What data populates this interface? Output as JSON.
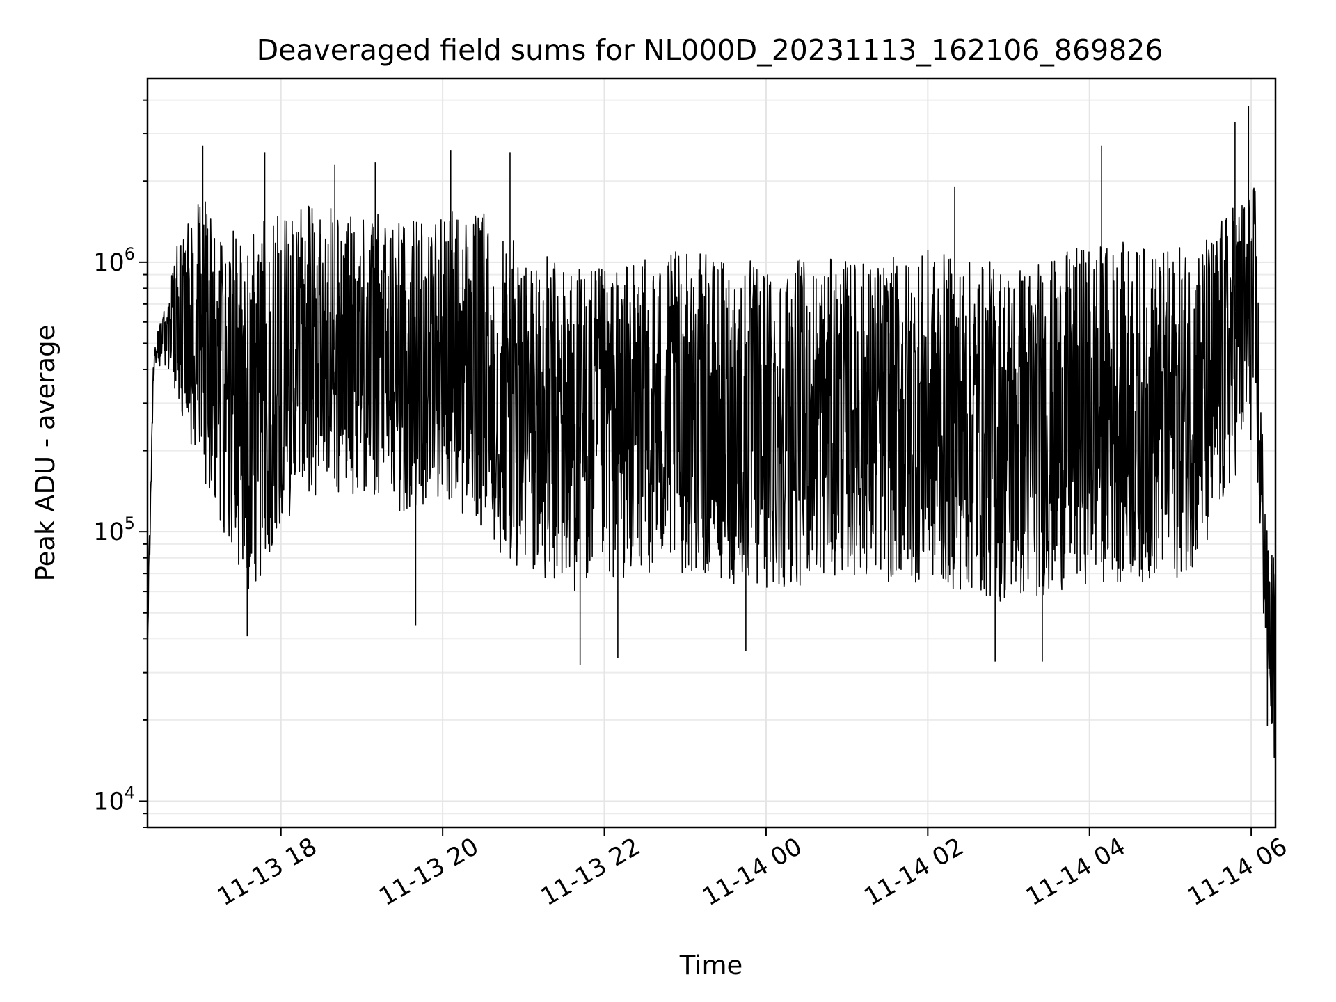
{
  "chart_data": {
    "type": "line",
    "title": "Deaveraged field sums for NL000D_20231113_162106_869826",
    "xlabel": "Time",
    "ylabel": "Peak ADU - average",
    "yscale": "log",
    "ylim": [
      8000,
      4800000
    ],
    "xlim": [
      "2023-11-13 16:21",
      "2023-11-14 06:18"
    ],
    "grid": true,
    "legend": "none",
    "line_color": "#000000",
    "x_ticks": [
      {
        "label": "11-13 18",
        "time": "2023-11-13 18:00"
      },
      {
        "label": "11-13 20",
        "time": "2023-11-13 20:00"
      },
      {
        "label": "11-13 22",
        "time": "2023-11-13 22:00"
      },
      {
        "label": "11-14 00",
        "time": "2023-11-14 00:00"
      },
      {
        "label": "11-14 02",
        "time": "2023-11-14 02:00"
      },
      {
        "label": "11-14 04",
        "time": "2023-11-14 04:00"
      },
      {
        "label": "11-14 06",
        "time": "2023-11-14 06:00"
      }
    ],
    "y_ticks": [
      {
        "base": "10",
        "exp": "4",
        "value": 10000
      },
      {
        "base": "10",
        "exp": "5",
        "value": 100000
      },
      {
        "base": "10",
        "exp": "6",
        "value": 1000000
      }
    ],
    "series": [
      {
        "envelope": [
          {
            "t": "2023-11-13 16:21",
            "low": 35000,
            "high": 50000
          },
          {
            "t": "2023-11-13 16:26",
            "low": 400000,
            "high": 600000
          },
          {
            "t": "2023-11-13 16:35",
            "low": 400000,
            "high": 700000
          },
          {
            "t": "2023-11-13 16:45",
            "low": 250000,
            "high": 1500000
          },
          {
            "t": "2023-11-13 17:00",
            "low": 150000,
            "high": 2000000
          },
          {
            "t": "2023-11-13 17:20",
            "low": 80000,
            "high": 1600000
          },
          {
            "t": "2023-11-13 17:40",
            "low": 45000,
            "high": 1800000
          },
          {
            "t": "2023-11-13 18:00",
            "low": 90000,
            "high": 1800000
          },
          {
            "t": "2023-11-13 18:30",
            "low": 120000,
            "high": 1900000
          },
          {
            "t": "2023-11-13 19:00",
            "low": 120000,
            "high": 1800000
          },
          {
            "t": "2023-11-13 19:30",
            "low": 100000,
            "high": 1700000
          },
          {
            "t": "2023-11-13 20:00",
            "low": 120000,
            "high": 1800000
          },
          {
            "t": "2023-11-13 20:30",
            "low": 80000,
            "high": 1800000
          },
          {
            "t": "2023-11-13 21:00",
            "low": 55000,
            "high": 1300000
          },
          {
            "t": "2023-11-13 21:30",
            "low": 50000,
            "high": 1200000
          },
          {
            "t": "2023-11-13 22:00",
            "low": 55000,
            "high": 1100000
          },
          {
            "t": "2023-11-13 22:30",
            "low": 60000,
            "high": 1200000
          },
          {
            "t": "2023-11-13 23:00",
            "low": 60000,
            "high": 1300000
          },
          {
            "t": "2023-11-13 23:30",
            "low": 55000,
            "high": 1200000
          },
          {
            "t": "2023-11-14 00:00",
            "low": 50000,
            "high": 1200000
          },
          {
            "t": "2023-11-14 00:30",
            "low": 55000,
            "high": 1200000
          },
          {
            "t": "2023-11-14 01:00",
            "low": 60000,
            "high": 1200000
          },
          {
            "t": "2023-11-14 01:30",
            "low": 55000,
            "high": 1200000
          },
          {
            "t": "2023-11-14 02:00",
            "low": 55000,
            "high": 1300000
          },
          {
            "t": "2023-11-14 02:30",
            "low": 50000,
            "high": 1200000
          },
          {
            "t": "2023-11-14 03:00",
            "low": 45000,
            "high": 1200000
          },
          {
            "t": "2023-11-14 03:30",
            "low": 50000,
            "high": 1200000
          },
          {
            "t": "2023-11-14 04:00",
            "low": 55000,
            "high": 1400000
          },
          {
            "t": "2023-11-14 04:30",
            "low": 55000,
            "high": 1400000
          },
          {
            "t": "2023-11-14 05:00",
            "low": 55000,
            "high": 1300000
          },
          {
            "t": "2023-11-14 05:30",
            "low": 70000,
            "high": 1500000
          },
          {
            "t": "2023-11-14 05:50",
            "low": 150000,
            "high": 2000000
          },
          {
            "t": "2023-11-14 06:03",
            "low": 200000,
            "high": 2200000
          },
          {
            "t": "2023-11-14 06:08",
            "low": 50000,
            "high": 300000
          },
          {
            "t": "2023-11-14 06:12",
            "low": 25000,
            "high": 100000
          },
          {
            "t": "2023-11-14 06:18",
            "low": 11000,
            "high": 90000
          }
        ],
        "spikes": [
          {
            "t": "2023-11-13 17:02",
            "value": 2700000
          },
          {
            "t": "2023-11-13 17:35",
            "value": 41000
          },
          {
            "t": "2023-11-13 17:48",
            "value": 2550000
          },
          {
            "t": "2023-11-13 18:40",
            "value": 2300000
          },
          {
            "t": "2023-11-13 19:10",
            "value": 2350000
          },
          {
            "t": "2023-11-13 19:40",
            "value": 45000
          },
          {
            "t": "2023-11-13 20:06",
            "value": 2600000
          },
          {
            "t": "2023-11-13 20:50",
            "value": 2550000
          },
          {
            "t": "2023-11-13 21:42",
            "value": 32000
          },
          {
            "t": "2023-11-13 22:10",
            "value": 34000
          },
          {
            "t": "2023-11-13 23:45",
            "value": 36000
          },
          {
            "t": "2023-11-14 02:20",
            "value": 1900000
          },
          {
            "t": "2023-11-14 02:50",
            "value": 33000
          },
          {
            "t": "2023-11-14 03:25",
            "value": 33000
          },
          {
            "t": "2023-11-14 04:09",
            "value": 2700000
          },
          {
            "t": "2023-11-14 05:48",
            "value": 3300000
          },
          {
            "t": "2023-11-14 05:58",
            "value": 3800000
          },
          {
            "t": "2023-11-14 06:12",
            "value": 19000
          }
        ]
      }
    ]
  }
}
